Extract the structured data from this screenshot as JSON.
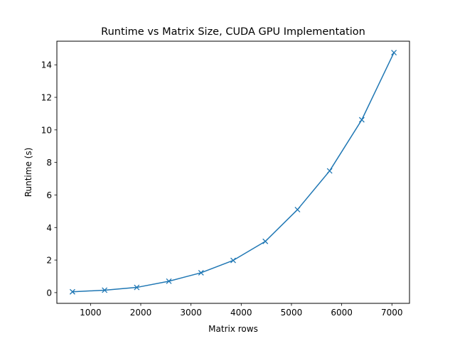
{
  "chart_data": {
    "type": "line",
    "title": "Runtime vs Matrix Size, CUDA GPU Implementation",
    "xlabel": "Matrix rows",
    "ylabel": "Runtime (s)",
    "xlim": [
      330,
      7350
    ],
    "ylim": [
      -0.66,
      15.45
    ],
    "xticks": [
      1000,
      2000,
      3000,
      4000,
      5000,
      6000,
      7000
    ],
    "yticks": [
      0,
      2,
      4,
      6,
      8,
      10,
      12,
      14
    ],
    "grid": false,
    "marker": "x",
    "color": "#1f77b4",
    "series": [
      {
        "x": [
          640,
          1280,
          1920,
          2560,
          3200,
          3840,
          4480,
          5120,
          5760,
          6400,
          7040
        ],
        "values": [
          0.05,
          0.15,
          0.32,
          0.7,
          1.22,
          1.98,
          3.15,
          5.1,
          7.48,
          10.62,
          14.75
        ]
      }
    ]
  }
}
